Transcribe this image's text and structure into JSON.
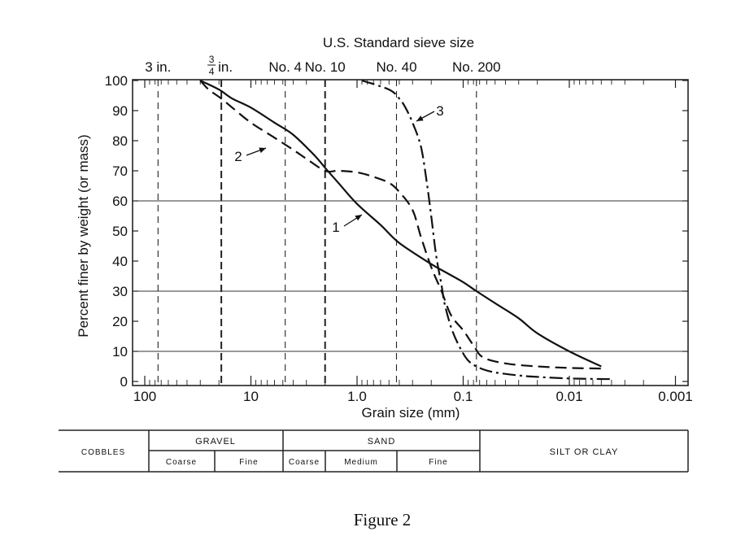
{
  "figure_caption": "Figure 2",
  "chart_data": {
    "type": "line",
    "x_scale": "log",
    "x_reversed": true,
    "xlabel": "Grain size (mm)",
    "ylabel": "Percent finer by weight (or mass)",
    "xlim": [
      100,
      0.001
    ],
    "ylim": [
      0,
      100
    ],
    "x_ticks": [
      {
        "value": 100,
        "label": "100"
      },
      {
        "value": 10,
        "label": "10"
      },
      {
        "value": 1,
        "label": "1.0"
      },
      {
        "value": 0.1,
        "label": "0.1"
      },
      {
        "value": 0.01,
        "label": "0.01"
      },
      {
        "value": 0.001,
        "label": "0.001"
      }
    ],
    "y_ticks": [
      0,
      10,
      20,
      30,
      40,
      50,
      60,
      70,
      80,
      90,
      100
    ],
    "y_tick_labels": [
      "0",
      "10",
      "20",
      "30",
      "40",
      "50",
      "60",
      "70",
      "80",
      "90",
      "100"
    ],
    "horizontal_gridlines": [
      10,
      30,
      60
    ],
    "top_axis_title": "U.S. Standard sieve size",
    "sieves": [
      {
        "label": "3 in.",
        "size": 75
      },
      {
        "label": "3/4 in.",
        "label_num": "3",
        "label_den": "4",
        "label_unit": "in.",
        "size": 19
      },
      {
        "label": "No. 4",
        "size": 4.75
      },
      {
        "label": "No. 10",
        "size": 2.0
      },
      {
        "label": "No. 40",
        "size": 0.425
      },
      {
        "label": "No. 200",
        "size": 0.075
      }
    ],
    "series": [
      {
        "name": "1",
        "style": "solid",
        "points": [
          [
            30,
            100
          ],
          [
            20,
            97
          ],
          [
            15,
            94
          ],
          [
            10,
            91
          ],
          [
            6,
            86
          ],
          [
            4,
            82
          ],
          [
            2.5,
            75
          ],
          [
            2,
            71
          ],
          [
            1.5,
            66
          ],
          [
            1,
            59
          ],
          [
            0.6,
            52
          ],
          [
            0.4,
            46
          ],
          [
            0.2,
            39
          ],
          [
            0.15,
            36.5
          ],
          [
            0.1,
            33
          ],
          [
            0.075,
            30
          ],
          [
            0.05,
            26
          ],
          [
            0.03,
            21
          ],
          [
            0.02,
            16
          ],
          [
            0.01,
            10
          ],
          [
            0.005,
            5
          ]
        ]
      },
      {
        "name": "2",
        "style": "dashed",
        "points": [
          [
            30,
            100
          ],
          [
            25,
            97
          ],
          [
            19,
            94
          ],
          [
            15,
            91
          ],
          [
            10,
            86
          ],
          [
            6,
            81
          ],
          [
            4,
            77
          ],
          [
            3,
            74
          ],
          [
            2,
            70
          ],
          [
            1.5,
            70
          ],
          [
            1,
            69.5
          ],
          [
            0.7,
            68
          ],
          [
            0.5,
            66
          ],
          [
            0.4,
            63
          ],
          [
            0.3,
            57
          ],
          [
            0.25,
            48
          ],
          [
            0.2,
            38
          ],
          [
            0.16,
            30
          ],
          [
            0.13,
            22
          ],
          [
            0.1,
            17
          ],
          [
            0.08,
            12
          ],
          [
            0.065,
            8
          ],
          [
            0.04,
            6
          ],
          [
            0.02,
            5
          ],
          [
            0.01,
            4.5
          ],
          [
            0.005,
            4.3
          ]
        ]
      },
      {
        "name": "3",
        "style": "dash-dot",
        "points": [
          [
            0.9,
            100
          ],
          [
            0.5,
            97
          ],
          [
            0.4,
            94
          ],
          [
            0.35,
            91
          ],
          [
            0.3,
            86
          ],
          [
            0.25,
            78
          ],
          [
            0.22,
            66
          ],
          [
            0.2,
            55
          ],
          [
            0.18,
            42
          ],
          [
            0.16,
            32
          ],
          [
            0.15,
            26
          ],
          [
            0.13,
            18
          ],
          [
            0.11,
            12
          ],
          [
            0.09,
            7
          ],
          [
            0.07,
            4.5
          ],
          [
            0.05,
            3
          ],
          [
            0.03,
            2
          ],
          [
            0.02,
            1.5
          ],
          [
            0.01,
            1
          ],
          [
            0.005,
            0.8
          ],
          [
            0.004,
            0.8
          ]
        ]
      }
    ],
    "annotations": [
      {
        "text": "1",
        "series": "1"
      },
      {
        "text": "2",
        "series": "2"
      },
      {
        "text": "3",
        "series": "3"
      }
    ]
  },
  "classification_table": {
    "cobbles": "COBBLES",
    "gravel": "GRAVEL",
    "gravel_coarse": "Coarse",
    "gravel_fine": "Fine",
    "sand": "SAND",
    "sand_coarse": "Coarse",
    "sand_medium": "Medium",
    "sand_fine": "Fine",
    "silt_clay": "SILT OR CLAY"
  }
}
